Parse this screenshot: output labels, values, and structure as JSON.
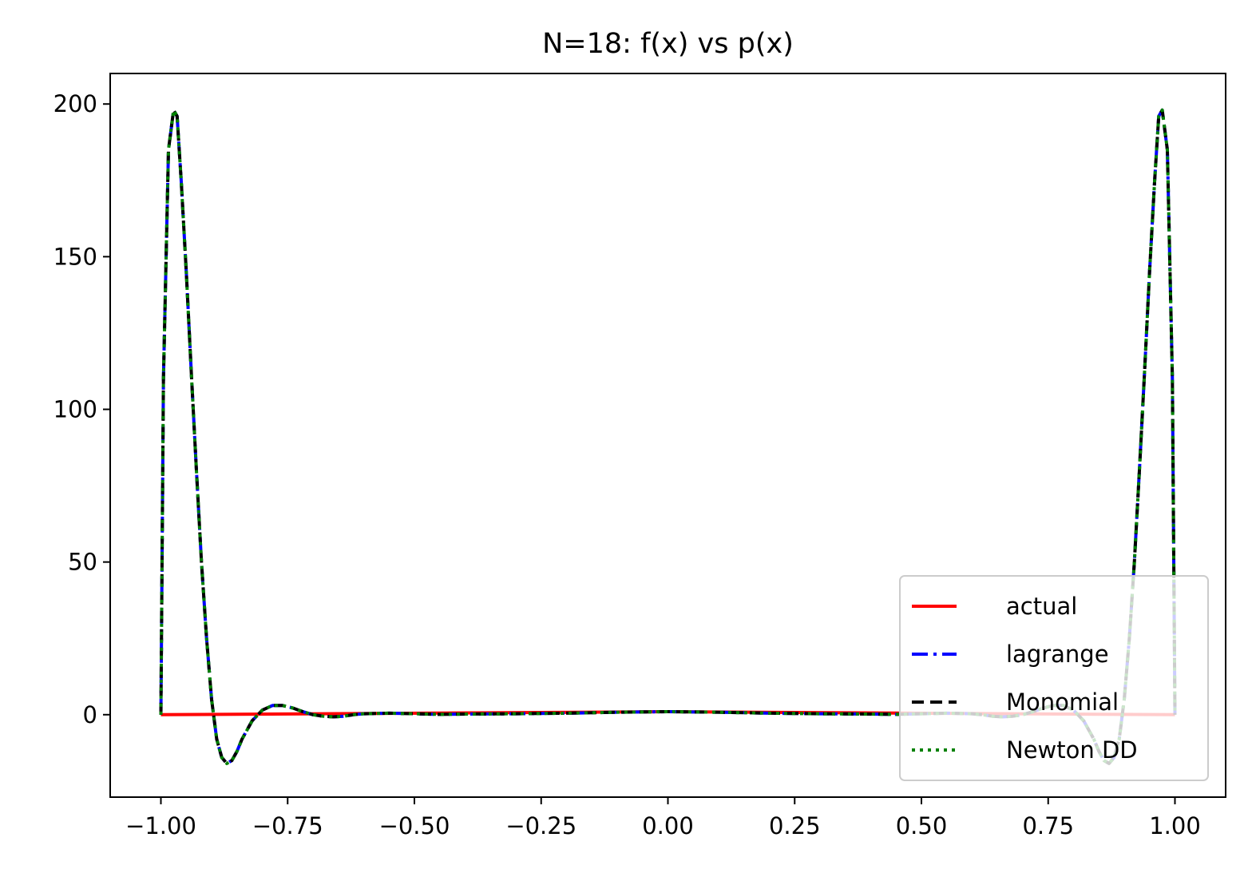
{
  "chart_data": {
    "type": "line",
    "title": "N=18: f(x) vs p(x)",
    "xlabel": "",
    "ylabel": "",
    "xlim": [
      -1.1,
      1.1
    ],
    "ylim": [
      -27,
      210
    ],
    "xticks": [
      -1.0,
      -0.75,
      -0.5,
      -0.25,
      0.0,
      0.25,
      0.5,
      0.75,
      1.0
    ],
    "xtick_labels": [
      "−1.00",
      "−0.75",
      "−0.50",
      "−0.25",
      "0.00",
      "0.25",
      "0.50",
      "0.75",
      "1.00"
    ],
    "yticks": [
      0,
      50,
      100,
      150,
      200
    ],
    "ytick_labels": [
      "0",
      "50",
      "100",
      "150",
      "200"
    ],
    "grid": false,
    "legend_position": "lower-right",
    "series": [
      {
        "name": "actual",
        "color": "#ff0000",
        "style": "solid",
        "x": [
          -1.0,
          0.0,
          1.0
        ],
        "y": [
          0.0,
          1.0,
          0.0
        ]
      },
      {
        "name": "lagrange",
        "color": "#0000ff",
        "style": "dashdot",
        "x": [
          -1.0,
          -0.995,
          -0.985,
          -0.975,
          -0.968,
          -0.96,
          -0.95,
          -0.94,
          -0.93,
          -0.92,
          -0.91,
          -0.9,
          -0.89,
          -0.88,
          -0.87,
          -0.86,
          -0.85,
          -0.84,
          -0.82,
          -0.8,
          -0.78,
          -0.76,
          -0.74,
          -0.72,
          -0.7,
          -0.68,
          -0.66,
          -0.64,
          -0.62,
          -0.6,
          -0.55,
          -0.5,
          -0.45,
          -0.4,
          -0.3,
          -0.2,
          -0.1,
          0.0,
          0.1,
          0.2,
          0.3,
          0.4,
          0.45,
          0.5,
          0.55,
          0.6,
          0.62,
          0.64,
          0.66,
          0.68,
          0.7,
          0.72,
          0.74,
          0.76,
          0.78,
          0.8,
          0.82,
          0.84,
          0.85,
          0.86,
          0.87,
          0.88,
          0.89,
          0.9,
          0.91,
          0.92,
          0.93,
          0.94,
          0.95,
          0.96,
          0.968,
          0.975,
          0.985,
          0.995,
          1.0
        ],
        "y": [
          0.0,
          110.0,
          185.0,
          198.0,
          196.0,
          175.0,
          145.0,
          112.0,
          80.0,
          50.0,
          25.0,
          5.0,
          -8.0,
          -14.0,
          -16.0,
          -15.0,
          -12.0,
          -8.0,
          -2.0,
          1.5,
          3.0,
          3.0,
          2.2,
          1.0,
          0.0,
          -0.5,
          -0.7,
          -0.5,
          0.0,
          0.3,
          0.5,
          0.3,
          0.1,
          0.2,
          0.3,
          0.5,
          0.8,
          1.0,
          0.8,
          0.5,
          0.3,
          0.2,
          0.1,
          0.3,
          0.5,
          0.3,
          0.0,
          -0.5,
          -0.7,
          -0.5,
          0.0,
          1.0,
          2.2,
          3.0,
          3.0,
          1.5,
          -2.0,
          -8.0,
          -12.0,
          -15.0,
          -16.0,
          -14.0,
          -8.0,
          5.0,
          25.0,
          50.0,
          80.0,
          112.0,
          145.0,
          175.0,
          196.0,
          198.0,
          185.0,
          110.0,
          0.0
        ]
      },
      {
        "name": "Monomial",
        "color": "#000000",
        "style": "dashed",
        "same_as": "lagrange"
      },
      {
        "name": "Newton DD",
        "color": "#008000",
        "style": "dotted",
        "same_as": "lagrange"
      }
    ]
  }
}
